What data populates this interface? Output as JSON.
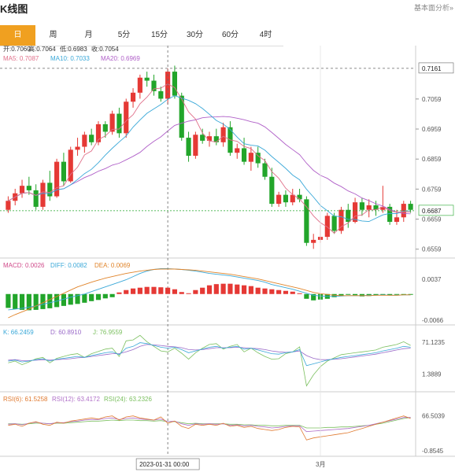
{
  "app": {
    "title": "K线图",
    "settings_label": "基本面分析»"
  },
  "tabs": [
    {
      "label": "日",
      "active": true
    },
    {
      "label": "周",
      "active": false
    },
    {
      "label": "月",
      "active": false
    },
    {
      "label": "5分",
      "active": false
    },
    {
      "label": "15分",
      "active": false
    },
    {
      "label": "30分",
      "active": false
    },
    {
      "label": "60分",
      "active": false
    },
    {
      "label": "4时",
      "active": false
    }
  ],
  "info": {
    "ohlc": [
      "开:0.7060",
      "高:0.7064",
      "低:0.6983",
      "收:0.7054"
    ],
    "ma": [
      "MA5: 0.7087",
      "MA10: 0.7033",
      "MA20: 0.6969"
    ],
    "macd": [
      "MACD: 0.0026",
      "DIFF: 0.0082",
      "DEA: 0.0069"
    ],
    "kdj": [
      "K: 66.2459",
      "D: 60.8910",
      "J: 76.9559"
    ],
    "rsi": [
      "RSI(6): 61.5258",
      "RSI(12): 63.4172",
      "RSI(24): 63.2326"
    ]
  },
  "colors": {
    "up": "#e53935",
    "down": "#22a52a",
    "ma5": "#e0708a",
    "ma10": "#3aa8d8",
    "ma20": "#b060c8",
    "macd_diff": "#3aa8d8",
    "macd_dea": "#e0842a",
    "k": "#3aa8d8",
    "d": "#9a6ac8",
    "j": "#7cc060",
    "rsi6": "#e07a30",
    "rsi12": "#b070c8",
    "rsi24": "#7cc060"
  },
  "crosshair": {
    "date_label": "2023-01-31 00:00",
    "price_label": "0.7161"
  },
  "x_axis": {
    "month_label": "3月",
    "month_index": 45
  },
  "chart_data": {
    "type": "candlestick",
    "price_axis": {
      "ylim": [
        0.654,
        0.72
      ],
      "ticks": [
        "0.7059",
        "0.6959",
        "0.6859",
        "0.6759",
        "0.6659",
        "0.6559"
      ]
    },
    "last_price": "0.6687",
    "macd_axis": {
      "ticks": [
        "0.0037",
        "-0.0066"
      ]
    },
    "kdj_axis": {
      "ticks": [
        "71.1235",
        "1.3889"
      ]
    },
    "rsi_axis": {
      "ticks": [
        "66.5039",
        "-0.8545"
      ]
    },
    "candles": [
      {
        "o": 0.669,
        "h": 0.6735,
        "l": 0.668,
        "c": 0.672
      },
      {
        "o": 0.672,
        "h": 0.676,
        "l": 0.6705,
        "c": 0.6745
      },
      {
        "o": 0.6745,
        "h": 0.679,
        "l": 0.673,
        "c": 0.677
      },
      {
        "o": 0.677,
        "h": 0.68,
        "l": 0.674,
        "c": 0.6755
      },
      {
        "o": 0.6755,
        "h": 0.6775,
        "l": 0.669,
        "c": 0.67
      },
      {
        "o": 0.67,
        "h": 0.679,
        "l": 0.669,
        "c": 0.678
      },
      {
        "o": 0.678,
        "h": 0.682,
        "l": 0.672,
        "c": 0.6735
      },
      {
        "o": 0.6735,
        "h": 0.686,
        "l": 0.673,
        "c": 0.685
      },
      {
        "o": 0.685,
        "h": 0.688,
        "l": 0.677,
        "c": 0.6785
      },
      {
        "o": 0.6785,
        "h": 0.69,
        "l": 0.678,
        "c": 0.689
      },
      {
        "o": 0.689,
        "h": 0.693,
        "l": 0.687,
        "c": 0.69
      },
      {
        "o": 0.69,
        "h": 0.695,
        "l": 0.688,
        "c": 0.694
      },
      {
        "o": 0.694,
        "h": 0.696,
        "l": 0.6905,
        "c": 0.6915
      },
      {
        "o": 0.6915,
        "h": 0.6985,
        "l": 0.6905,
        "c": 0.6975
      },
      {
        "o": 0.6975,
        "h": 0.6985,
        "l": 0.693,
        "c": 0.695
      },
      {
        "o": 0.695,
        "h": 0.702,
        "l": 0.694,
        "c": 0.701
      },
      {
        "o": 0.701,
        "h": 0.703,
        "l": 0.693,
        "c": 0.6945
      },
      {
        "o": 0.6945,
        "h": 0.706,
        "l": 0.693,
        "c": 0.705
      },
      {
        "o": 0.705,
        "h": 0.7095,
        "l": 0.703,
        "c": 0.708
      },
      {
        "o": 0.708,
        "h": 0.714,
        "l": 0.706,
        "c": 0.713
      },
      {
        "o": 0.713,
        "h": 0.715,
        "l": 0.71,
        "c": 0.712
      },
      {
        "o": 0.712,
        "h": 0.714,
        "l": 0.707,
        "c": 0.7085
      },
      {
        "o": 0.7085,
        "h": 0.71,
        "l": 0.705,
        "c": 0.706
      },
      {
        "o": 0.706,
        "h": 0.716,
        "l": 0.704,
        "c": 0.715
      },
      {
        "o": 0.715,
        "h": 0.717,
        "l": 0.706,
        "c": 0.707
      },
      {
        "o": 0.707,
        "h": 0.708,
        "l": 0.692,
        "c": 0.693
      },
      {
        "o": 0.693,
        "h": 0.695,
        "l": 0.685,
        "c": 0.687
      },
      {
        "o": 0.687,
        "h": 0.695,
        "l": 0.686,
        "c": 0.694
      },
      {
        "o": 0.694,
        "h": 0.696,
        "l": 0.691,
        "c": 0.692
      },
      {
        "o": 0.692,
        "h": 0.695,
        "l": 0.69,
        "c": 0.6935
      },
      {
        "o": 0.6935,
        "h": 0.696,
        "l": 0.6905,
        "c": 0.6915
      },
      {
        "o": 0.6915,
        "h": 0.698,
        "l": 0.69,
        "c": 0.6965
      },
      {
        "o": 0.6965,
        "h": 0.6985,
        "l": 0.687,
        "c": 0.688
      },
      {
        "o": 0.688,
        "h": 0.691,
        "l": 0.686,
        "c": 0.6895
      },
      {
        "o": 0.6895,
        "h": 0.693,
        "l": 0.684,
        "c": 0.685
      },
      {
        "o": 0.685,
        "h": 0.69,
        "l": 0.682,
        "c": 0.688
      },
      {
        "o": 0.688,
        "h": 0.69,
        "l": 0.683,
        "c": 0.6845
      },
      {
        "o": 0.6845,
        "h": 0.686,
        "l": 0.679,
        "c": 0.68
      },
      {
        "o": 0.68,
        "h": 0.683,
        "l": 0.67,
        "c": 0.671
      },
      {
        "o": 0.671,
        "h": 0.675,
        "l": 0.67,
        "c": 0.674
      },
      {
        "o": 0.674,
        "h": 0.6755,
        "l": 0.67,
        "c": 0.6715
      },
      {
        "o": 0.6715,
        "h": 0.676,
        "l": 0.6705,
        "c": 0.674
      },
      {
        "o": 0.674,
        "h": 0.676,
        "l": 0.6715,
        "c": 0.6725
      },
      {
        "o": 0.6725,
        "h": 0.6735,
        "l": 0.657,
        "c": 0.658
      },
      {
        "o": 0.658,
        "h": 0.661,
        "l": 0.656,
        "c": 0.659
      },
      {
        "o": 0.659,
        "h": 0.664,
        "l": 0.658,
        "c": 0.66
      },
      {
        "o": 0.66,
        "h": 0.668,
        "l": 0.659,
        "c": 0.667
      },
      {
        "o": 0.667,
        "h": 0.668,
        "l": 0.661,
        "c": 0.662
      },
      {
        "o": 0.662,
        "h": 0.67,
        "l": 0.661,
        "c": 0.669
      },
      {
        "o": 0.669,
        "h": 0.671,
        "l": 0.663,
        "c": 0.665
      },
      {
        "o": 0.665,
        "h": 0.673,
        "l": 0.6645,
        "c": 0.6715
      },
      {
        "o": 0.6715,
        "h": 0.673,
        "l": 0.667,
        "c": 0.669
      },
      {
        "o": 0.669,
        "h": 0.6725,
        "l": 0.6665,
        "c": 0.6705
      },
      {
        "o": 0.6705,
        "h": 0.672,
        "l": 0.667,
        "c": 0.669
      },
      {
        "o": 0.669,
        "h": 0.677,
        "l": 0.668,
        "c": 0.67
      },
      {
        "o": 0.67,
        "h": 0.671,
        "l": 0.664,
        "c": 0.665
      },
      {
        "o": 0.665,
        "h": 0.669,
        "l": 0.664,
        "c": 0.6665
      },
      {
        "o": 0.6665,
        "h": 0.672,
        "l": 0.665,
        "c": 0.671
      },
      {
        "o": 0.671,
        "h": 0.672,
        "l": 0.668,
        "c": 0.669
      }
    ],
    "macd_hist": [
      -0.0035,
      -0.0038,
      -0.004,
      -0.0041,
      -0.004,
      -0.0038,
      -0.0036,
      -0.0033,
      -0.003,
      -0.0027,
      -0.0025,
      -0.0022,
      -0.0018,
      -0.0015,
      -0.0011,
      -0.0008,
      0.0004,
      0.001,
      0.0014,
      0.0016,
      0.0018,
      0.0018,
      0.0017,
      0.0016,
      0.0012,
      0.0005,
      0.0002,
      0.001,
      0.0016,
      0.0022,
      0.0025,
      0.0026,
      0.0026,
      0.0024,
      0.0022,
      0.002,
      0.0016,
      0.0014,
      0.0012,
      0.001,
      0.0008,
      0.0006,
      0.0002,
      -0.0012,
      -0.0016,
      -0.0014,
      -0.0012,
      -0.0008,
      -0.0004,
      -0.0002,
      -0.0003,
      -0.0006,
      -0.0005,
      -0.0003,
      -0.0002,
      -0.0003,
      -0.0002,
      -0.0001,
      -0.0002
    ],
    "macd_diff": [
      -0.004,
      -0.0038,
      -0.0036,
      -0.0033,
      -0.003,
      -0.0026,
      -0.0022,
      -0.0018,
      -0.0013,
      -0.0008,
      -0.0004,
      0.0,
      0.0006,
      0.0012,
      0.0018,
      0.0024,
      0.003,
      0.0036,
      0.0044,
      0.0052,
      0.0058,
      0.0062,
      0.0064,
      0.0064,
      0.0063,
      0.0062,
      0.006,
      0.0058,
      0.0055,
      0.0052,
      0.005,
      0.0048,
      0.0046,
      0.0043,
      0.004,
      0.0037,
      0.0034,
      0.003,
      0.0024,
      0.002,
      0.0016,
      0.0012,
      0.0007,
      0.0002,
      -0.0003,
      -0.0005,
      -0.0006,
      -0.0006,
      -0.0005,
      -0.0004,
      -0.0004,
      -0.0004,
      -0.0003,
      -0.0003,
      -0.0002,
      -0.0003,
      -0.0003,
      -0.0002,
      -0.0002
    ],
    "macd_dea": [
      -0.006,
      -0.0052,
      -0.0045,
      -0.0038,
      -0.003,
      -0.0022,
      -0.0014,
      -0.0006,
      0.0002,
      0.001,
      0.0018,
      0.0024,
      0.003,
      0.0035,
      0.004,
      0.0044,
      0.0048,
      0.0052,
      0.0055,
      0.0058,
      0.006,
      0.0062,
      0.0063,
      0.0063,
      0.0063,
      0.0062,
      0.0061,
      0.006,
      0.0058,
      0.0056,
      0.0054,
      0.0052,
      0.005,
      0.0047,
      0.0044,
      0.0041,
      0.0038,
      0.0034,
      0.003,
      0.0026,
      0.0022,
      0.0018,
      0.0014,
      0.0009,
      0.0004,
      0.0001,
      -0.0001,
      -0.0003,
      -0.0004,
      -0.0004,
      -0.0004,
      -0.0004,
      -0.0004,
      -0.0003,
      -0.0003,
      -0.0003,
      -0.0003,
      -0.0002,
      -0.0002
    ],
    "kdj_k": [
      30,
      32,
      28,
      30,
      33,
      35,
      30,
      34,
      36,
      38,
      40,
      38,
      42,
      45,
      48,
      50,
      44,
      58,
      62,
      70,
      68,
      64,
      60,
      58,
      60,
      55,
      48,
      52,
      56,
      60,
      62,
      58,
      60,
      62,
      56,
      58,
      54,
      50,
      46,
      45,
      48,
      50,
      55,
      20,
      24,
      28,
      32,
      35,
      38,
      40,
      42,
      44,
      46,
      48,
      52,
      55,
      58,
      62,
      60
    ],
    "kdj_d": [
      32,
      33,
      31,
      31,
      32,
      33,
      32,
      33,
      34,
      35,
      37,
      38,
      40,
      42,
      44,
      46,
      46,
      50,
      55,
      62,
      66,
      65,
      64,
      62,
      61,
      59,
      55,
      54,
      55,
      57,
      59,
      59,
      59,
      60,
      59,
      58,
      57,
      55,
      52,
      50,
      49,
      50,
      52,
      42,
      36,
      33,
      33,
      34,
      35,
      37,
      39,
      41,
      43,
      45,
      48,
      51,
      54,
      57,
      58
    ],
    "kdj_j": [
      26,
      30,
      22,
      28,
      35,
      38,
      26,
      36,
      40,
      44,
      46,
      38,
      46,
      51,
      56,
      58,
      40,
      74,
      76,
      86,
      72,
      62,
      52,
      50,
      58,
      47,
      34,
      48,
      58,
      66,
      68,
      56,
      62,
      66,
      50,
      58,
      48,
      40,
      34,
      35,
      46,
      50,
      61,
      -24,
      0,
      18,
      30,
      37,
      44,
      46,
      48,
      50,
      52,
      54,
      60,
      63,
      66,
      72,
      64
    ],
    "rsi6": [
      48,
      50,
      46,
      52,
      55,
      50,
      48,
      54,
      52,
      56,
      58,
      60,
      62,
      60,
      64,
      66,
      58,
      64,
      66,
      62,
      60,
      58,
      64,
      52,
      56,
      46,
      42,
      50,
      48,
      50,
      48,
      52,
      46,
      48,
      44,
      46,
      42,
      40,
      38,
      40,
      44,
      46,
      45,
      20,
      24,
      26,
      28,
      30,
      32,
      34,
      38,
      42,
      46,
      50,
      54,
      58,
      62,
      66,
      61
    ],
    "rsi12": [
      50,
      51,
      49,
      52,
      54,
      52,
      51,
      53,
      53,
      55,
      56,
      58,
      59,
      59,
      61,
      62,
      59,
      61,
      62,
      60,
      59,
      58,
      60,
      55,
      56,
      51,
      48,
      51,
      50,
      51,
      50,
      51,
      48,
      49,
      47,
      48,
      46,
      45,
      43,
      44,
      46,
      47,
      47,
      36,
      37,
      38,
      39,
      40,
      41,
      42,
      44,
      46,
      48,
      51,
      54,
      57,
      60,
      63,
      63
    ],
    "rsi24": [
      51,
      51,
      50,
      51,
      52,
      52,
      51,
      52,
      52,
      53,
      54,
      55,
      56,
      56,
      57,
      58,
      57,
      58,
      58,
      57,
      57,
      56,
      57,
      55,
      55,
      53,
      51,
      52,
      51,
      51,
      51,
      51,
      50,
      50,
      49,
      49,
      48,
      48,
      47,
      47,
      48,
      48,
      48,
      43,
      43,
      43,
      44,
      44,
      45,
      45,
      46,
      47,
      48,
      50,
      52,
      55,
      58,
      61,
      63
    ]
  }
}
